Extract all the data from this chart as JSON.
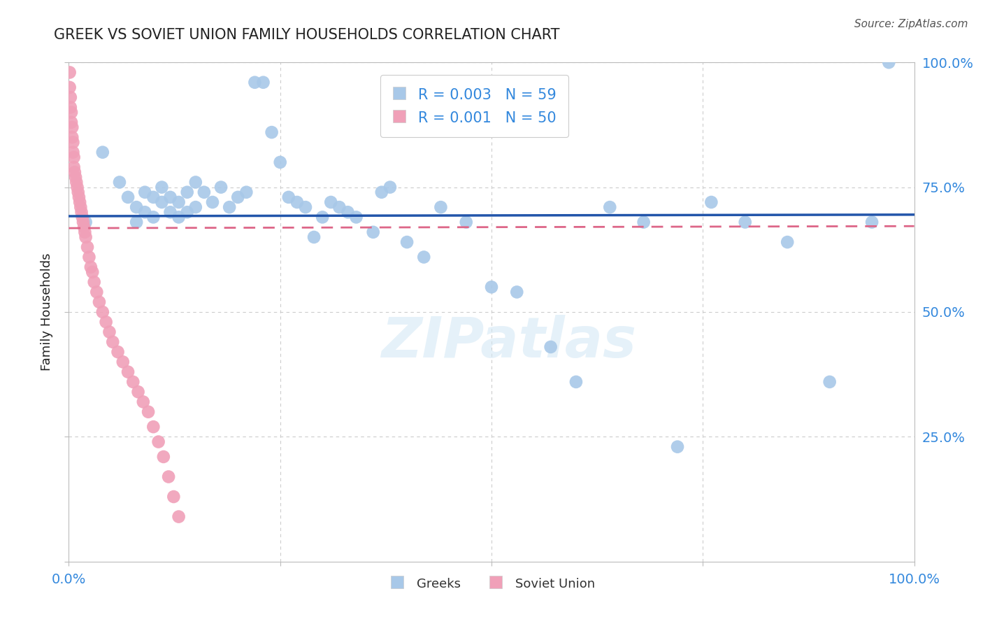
{
  "title": "GREEK VS SOVIET UNION FAMILY HOUSEHOLDS CORRELATION CHART",
  "source": "Source: ZipAtlas.com",
  "ylabel": "Family Households",
  "xlim": [
    0,
    1.0
  ],
  "ylim": [
    0,
    1.0
  ],
  "legend_entry1": "R = 0.003   N = 59",
  "legend_entry2": "R = 0.001   N = 50",
  "legend_label1": "Greeks",
  "legend_label2": "Soviet Union",
  "blue_color": "#A8C8E8",
  "pink_color": "#F0A0B8",
  "blue_line_color": "#2255AA",
  "pink_line_color": "#DD6688",
  "background_color": "#FFFFFF",
  "grid_color": "#CCCCCC",
  "title_color": "#222222",
  "axis_label_color": "#222222",
  "tick_label_color": "#3388DD",
  "legend_text_color": "#3388DD",
  "watermark": "ZIPatlas",
  "blue_x": [
    0.02,
    0.04,
    0.06,
    0.07,
    0.08,
    0.08,
    0.09,
    0.09,
    0.1,
    0.1,
    0.11,
    0.11,
    0.12,
    0.12,
    0.13,
    0.13,
    0.14,
    0.14,
    0.15,
    0.15,
    0.16,
    0.17,
    0.18,
    0.19,
    0.2,
    0.21,
    0.22,
    0.23,
    0.24,
    0.25,
    0.26,
    0.27,
    0.28,
    0.29,
    0.3,
    0.31,
    0.32,
    0.33,
    0.34,
    0.36,
    0.37,
    0.38,
    0.4,
    0.42,
    0.44,
    0.47,
    0.5,
    0.53,
    0.57,
    0.6,
    0.64,
    0.68,
    0.72,
    0.76,
    0.8,
    0.85,
    0.9,
    0.95,
    0.97
  ],
  "blue_y": [
    0.68,
    0.82,
    0.76,
    0.73,
    0.71,
    0.68,
    0.74,
    0.7,
    0.73,
    0.69,
    0.75,
    0.72,
    0.73,
    0.7,
    0.72,
    0.69,
    0.74,
    0.7,
    0.76,
    0.71,
    0.74,
    0.72,
    0.75,
    0.71,
    0.73,
    0.74,
    0.96,
    0.96,
    0.86,
    0.8,
    0.73,
    0.72,
    0.71,
    0.65,
    0.69,
    0.72,
    0.71,
    0.7,
    0.69,
    0.66,
    0.74,
    0.75,
    0.64,
    0.61,
    0.71,
    0.68,
    0.55,
    0.54,
    0.43,
    0.36,
    0.71,
    0.68,
    0.23,
    0.72,
    0.68,
    0.64,
    0.36,
    0.68,
    1.0
  ],
  "pink_x": [
    0.001,
    0.001,
    0.002,
    0.002,
    0.003,
    0.003,
    0.004,
    0.004,
    0.005,
    0.005,
    0.006,
    0.006,
    0.007,
    0.008,
    0.009,
    0.01,
    0.011,
    0.012,
    0.013,
    0.014,
    0.015,
    0.016,
    0.017,
    0.018,
    0.019,
    0.02,
    0.022,
    0.024,
    0.026,
    0.028,
    0.03,
    0.033,
    0.036,
    0.04,
    0.044,
    0.048,
    0.052,
    0.058,
    0.064,
    0.07,
    0.076,
    0.082,
    0.088,
    0.094,
    0.1,
    0.106,
    0.112,
    0.118,
    0.124,
    0.13
  ],
  "pink_y": [
    0.98,
    0.95,
    0.93,
    0.91,
    0.9,
    0.88,
    0.87,
    0.85,
    0.84,
    0.82,
    0.81,
    0.79,
    0.78,
    0.77,
    0.76,
    0.75,
    0.74,
    0.73,
    0.72,
    0.71,
    0.7,
    0.69,
    0.68,
    0.67,
    0.66,
    0.65,
    0.63,
    0.61,
    0.59,
    0.58,
    0.56,
    0.54,
    0.52,
    0.5,
    0.48,
    0.46,
    0.44,
    0.42,
    0.4,
    0.38,
    0.36,
    0.34,
    0.32,
    0.3,
    0.27,
    0.24,
    0.21,
    0.17,
    0.13,
    0.09
  ],
  "blue_line_y_start": 0.692,
  "blue_line_y_end": 0.695,
  "pink_line_y_start": 0.668,
  "pink_line_y_end": 0.672
}
